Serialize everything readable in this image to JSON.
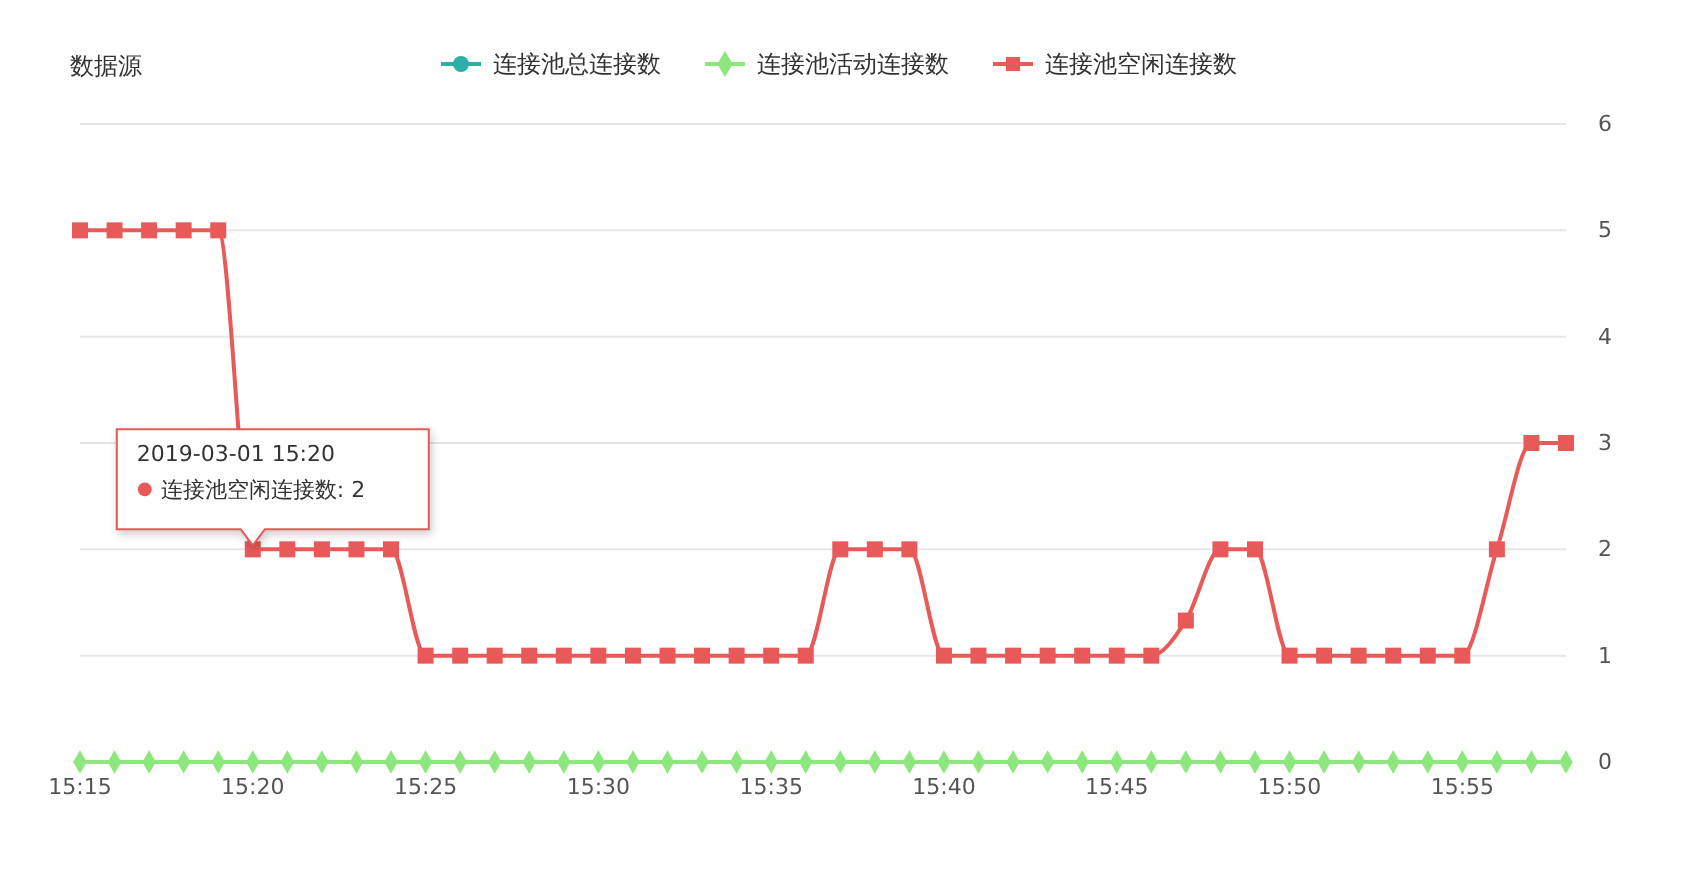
{
  "chart_data": {
    "type": "line",
    "title": "数据源",
    "x": [
      "2019-03-01T15:15",
      "2019-03-01T15:16",
      "2019-03-01T15:17",
      "2019-03-01T15:18",
      "2019-03-01T15:19",
      "2019-03-01T15:20",
      "2019-03-01T15:21",
      "2019-03-01T15:22",
      "2019-03-01T15:23",
      "2019-03-01T15:24",
      "2019-03-01T15:25",
      "2019-03-01T15:26",
      "2019-03-01T15:27",
      "2019-03-01T15:28",
      "2019-03-01T15:29",
      "2019-03-01T15:30",
      "2019-03-01T15:31",
      "2019-03-01T15:32",
      "2019-03-01T15:33",
      "2019-03-01T15:34",
      "2019-03-01T15:35",
      "2019-03-01T15:36",
      "2019-03-01T15:37",
      "2019-03-01T15:38",
      "2019-03-01T15:39",
      "2019-03-01T15:40",
      "2019-03-01T15:41",
      "2019-03-01T15:42",
      "2019-03-01T15:43",
      "2019-03-01T15:44",
      "2019-03-01T15:45",
      "2019-03-01T15:46",
      "2019-03-01T15:47",
      "2019-03-01T15:48",
      "2019-03-01T15:49",
      "2019-03-01T15:50",
      "2019-03-01T15:51",
      "2019-03-01T15:52",
      "2019-03-01T15:53",
      "2019-03-01T15:54",
      "2019-03-01T15:55",
      "2019-03-01T15:56",
      "2019-03-01T15:57",
      "2019-03-01T15:58"
    ],
    "series": [
      {
        "name": "连接池总连接数",
        "color": "#2ab0a6",
        "marker": "circle",
        "values": [
          null,
          null,
          null,
          null,
          null,
          null,
          null,
          null,
          null,
          null,
          null,
          null,
          null,
          null,
          null,
          null,
          null,
          null,
          null,
          null,
          null,
          null,
          null,
          null,
          null,
          null,
          null,
          null,
          null,
          null,
          null,
          null,
          null,
          null,
          null,
          null,
          null,
          null,
          null,
          null,
          null,
          null,
          null,
          null
        ]
      },
      {
        "name": "连接池活动连接数",
        "color": "#8de67e",
        "marker": "diamond",
        "values": [
          0,
          0,
          0,
          0,
          0,
          0,
          0,
          0,
          0,
          0,
          0,
          0,
          0,
          0,
          0,
          0,
          0,
          0,
          0,
          0,
          0,
          0,
          0,
          0,
          0,
          0,
          0,
          0,
          0,
          0,
          0,
          0,
          0,
          0,
          0,
          0,
          0,
          0,
          0,
          0,
          0,
          0,
          0,
          0
        ]
      },
      {
        "name": "连接池空闲连接数",
        "color": "#e85a5a",
        "marker": "square",
        "values": [
          5,
          5,
          5,
          5,
          5,
          2,
          2,
          2,
          2,
          2,
          1,
          1,
          1,
          1,
          1,
          1,
          1,
          1,
          1,
          1,
          1,
          1,
          2,
          2,
          2,
          1,
          1,
          1,
          1,
          1,
          1,
          1,
          1.33,
          2,
          2,
          1,
          1,
          1,
          1,
          1,
          1,
          2,
          3,
          3
        ]
      }
    ],
    "xlim": [
      "2019-03-01T15:15",
      "2019-03-01T15:58"
    ],
    "xticks": [
      {
        "value": "2019-03-01T15:15",
        "label": "15:15"
      },
      {
        "value": "2019-03-01T15:20",
        "label": "15:20"
      },
      {
        "value": "2019-03-01T15:25",
        "label": "15:25"
      },
      {
        "value": "2019-03-01T15:30",
        "label": "15:30"
      },
      {
        "value": "2019-03-01T15:35",
        "label": "15:35"
      },
      {
        "value": "2019-03-01T15:40",
        "label": "15:40"
      },
      {
        "value": "2019-03-01T15:45",
        "label": "15:45"
      },
      {
        "value": "2019-03-01T15:50",
        "label": "15:50"
      },
      {
        "value": "2019-03-01T15:55",
        "label": "15:55"
      }
    ],
    "ylim": [
      0,
      6
    ],
    "yticks": [
      0,
      1,
      2,
      3,
      4,
      5,
      6
    ],
    "grid": "y",
    "legend": "top",
    "annotations": [
      {
        "text": "2019-03-01 15:20\n连接池空闲连接数: 2",
        "x": "2019-03-01T15:20",
        "y": 2
      }
    ]
  }
}
